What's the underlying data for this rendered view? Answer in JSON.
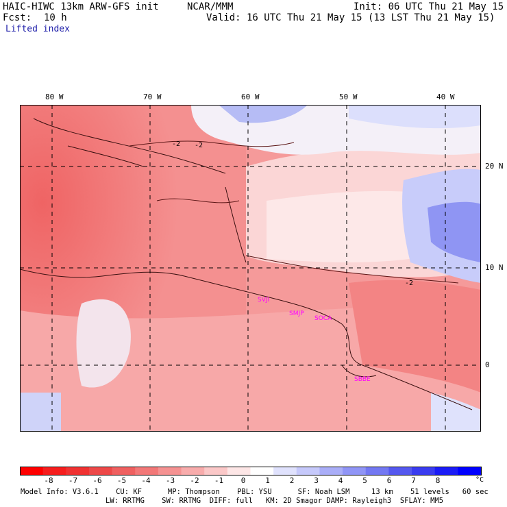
{
  "header": {
    "title": "HAIC-HIWC 13km ARW-GFS init",
    "org": "NCAR/MMM",
    "init": "Init: 06 UTC Thu 21 May 15",
    "fcst_label": "Fcst:",
    "fcst_value": "10 h",
    "valid": "Valid: 16 UTC Thu 21 May 15 (13 LST Thu 21 May 15)",
    "field": "Lifted index"
  },
  "map": {
    "lon_labels": [
      "80 W",
      "70 W",
      "60 W",
      "50 W",
      "40 W"
    ],
    "lat_labels": [
      "20 N",
      "10 N",
      "0"
    ],
    "contour_label": "-2",
    "stations": [
      "SVJI",
      "SMJP",
      "SOCA",
      "SBBE"
    ]
  },
  "colorbar": {
    "labels": [
      "-8",
      "-7",
      "-6",
      "-5",
      "-4",
      "-3",
      "-2",
      "-1",
      "0",
      "1",
      "2",
      "3",
      "4",
      "5",
      "6",
      "7",
      "8"
    ],
    "unit": "°C",
    "colors": [
      "#ff0000",
      "#f61e1e",
      "#f03232",
      "#ed4848",
      "#ef6060",
      "#f27878",
      "#f59292",
      "#f8acac",
      "#fbc8c8",
      "#fde6e6",
      "#ffffff",
      "#e0e2fd",
      "#c6c9fb",
      "#aaaef8",
      "#9095f6",
      "#7378f2",
      "#5558ef",
      "#3a3cf0",
      "#1b1cf6",
      "#0000ff"
    ]
  },
  "model_info": {
    "line1": "Model Info: V3.6.1    CU: KF      MP: Thompson    PBL: YSU      SF: Noah LSM     13 km    51 levels   60 sec",
    "line2": "LW: RRTMG    SW: RRTMG  DIFF: full   KM: 2D Smagor DAMP: Rayleigh3  SFLAY: MM5"
  }
}
